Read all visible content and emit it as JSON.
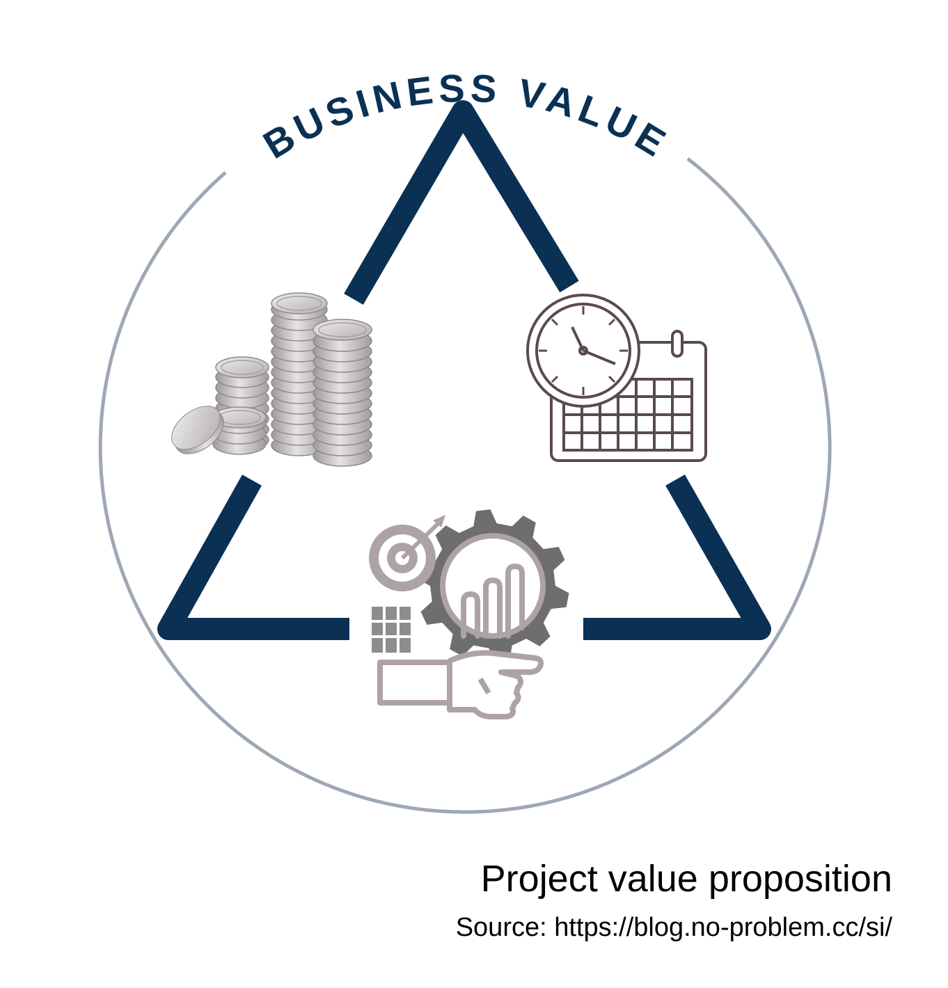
{
  "diagram": {
    "title": "BUSINESS VALUE",
    "icons": [
      {
        "name": "coins-icon"
      },
      {
        "name": "clock-calendar-icon"
      },
      {
        "name": "target-gear-hand-icon"
      }
    ],
    "colors": {
      "triangle": "#0a3154",
      "circle": "#9ea8b4",
      "title": "#0a3154",
      "coins": "#bdb8ba",
      "clock": "#5a4a4e",
      "gear": "#6e6e6e",
      "hand": "#ada3a7"
    }
  },
  "caption": {
    "title": "Project value proposition",
    "source": "Source: https://blog.no-problem.cc/si/"
  }
}
